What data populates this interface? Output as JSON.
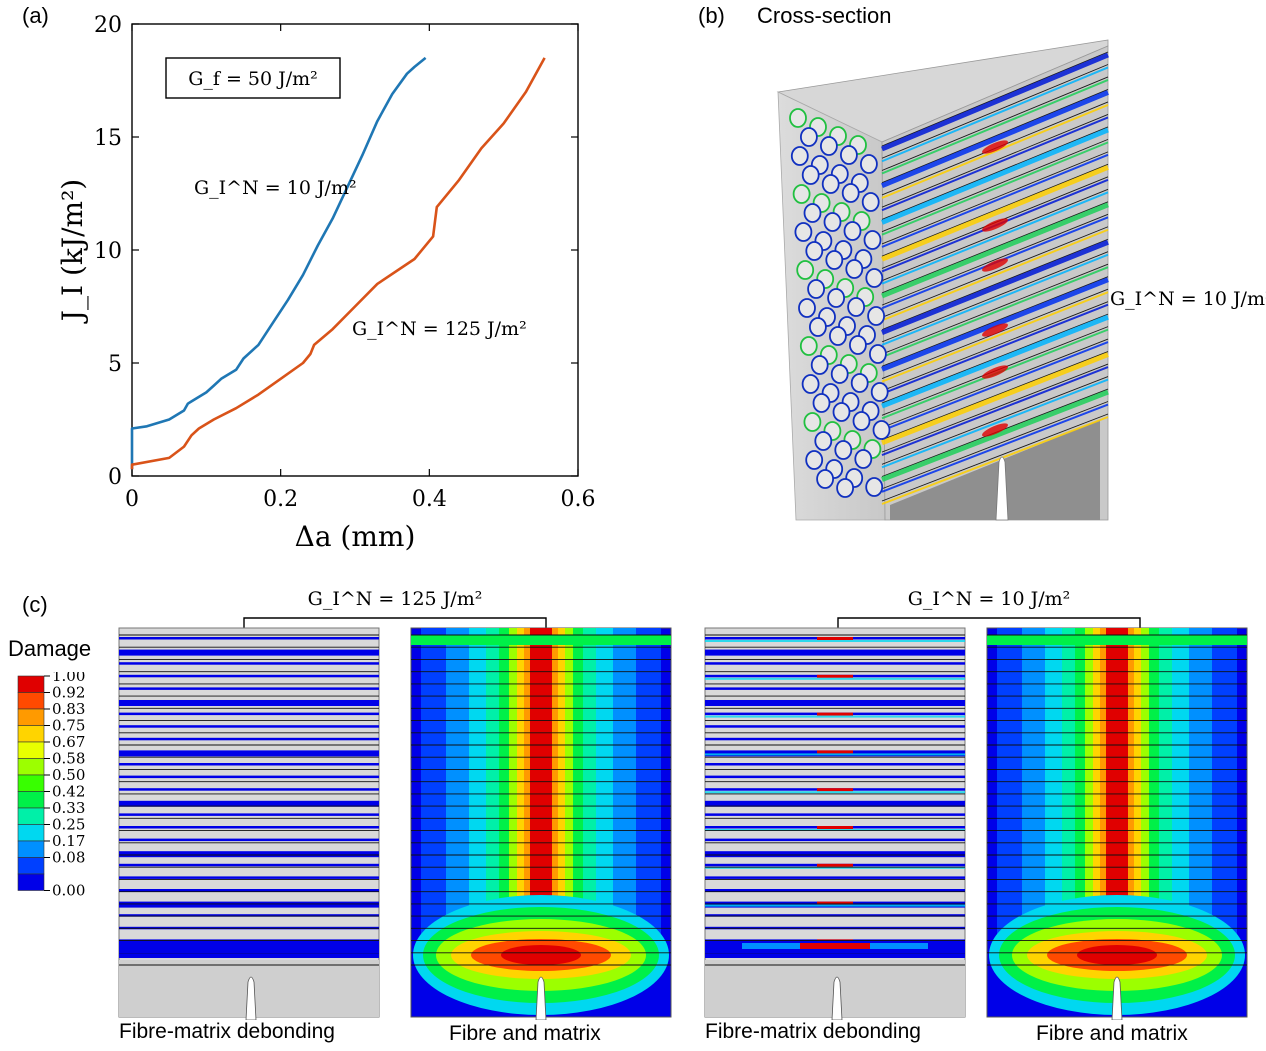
{
  "panel_labels": {
    "a": "(a)",
    "b": "(b)",
    "c": "(c)"
  },
  "chart_data": {
    "type": "line",
    "xlabel": "Δa (mm)",
    "ylabel": "J_I (kJ/m²)",
    "xlim": [
      0,
      0.6
    ],
    "ylim": [
      0,
      20
    ],
    "xticks": [
      "0",
      "0.2",
      "0.4",
      "0.6"
    ],
    "yticks": [
      "0",
      "5",
      "10",
      "15",
      "20"
    ],
    "grid": false,
    "legend_box": "G_f = 50 J/m²",
    "series": [
      {
        "name": "G_I^N = 10 J/m²",
        "color": "#1f77b4",
        "x": [
          0,
          0,
          0.02,
          0.05,
          0.07,
          0.075,
          0.08,
          0.1,
          0.11,
          0.12,
          0.14,
          0.15,
          0.17,
          0.19,
          0.21,
          0.23,
          0.25,
          0.27,
          0.29,
          0.31,
          0.33,
          0.35,
          0.37,
          0.38,
          0.395
        ],
        "y": [
          0.3,
          2.1,
          2.2,
          2.5,
          2.9,
          3.2,
          3.3,
          3.7,
          4.0,
          4.3,
          4.7,
          5.2,
          5.8,
          6.8,
          7.8,
          8.9,
          10.2,
          11.4,
          12.8,
          14.2,
          15.7,
          16.9,
          17.8,
          18.1,
          18.5
        ]
      },
      {
        "name": "G_I^N = 125 J/m²",
        "color": "#d95319",
        "x": [
          0,
          0,
          0.05,
          0.07,
          0.08,
          0.09,
          0.11,
          0.14,
          0.17,
          0.2,
          0.23,
          0.24,
          0.245,
          0.27,
          0.3,
          0.33,
          0.38,
          0.405,
          0.41,
          0.44,
          0.47,
          0.5,
          0.53,
          0.555
        ],
        "y": [
          0.3,
          0.5,
          0.8,
          1.3,
          1.8,
          2.1,
          2.5,
          3.0,
          3.6,
          4.3,
          5.0,
          5.4,
          5.8,
          6.5,
          7.5,
          8.5,
          9.6,
          10.6,
          11.9,
          13.1,
          14.5,
          15.6,
          17.0,
          18.5
        ]
      }
    ]
  },
  "panel_b": {
    "title": "Cross-section",
    "label": "G_I^N = 10 J/m²"
  },
  "panel_c": {
    "group_left": "G_I^N = 125 J/m²",
    "group_right": "G_I^N = 10 J/m²",
    "captions": [
      "Fibre-matrix debonding",
      "Fibre and matrix",
      "Fibre-matrix debonding",
      "Fibre and matrix"
    ],
    "legend": {
      "title": "Damage",
      "levels": [
        "1.00",
        "0.92",
        "0.83",
        "0.75",
        "0.67",
        "0.58",
        "0.50",
        "0.42",
        "0.33",
        "0.25",
        "0.17",
        "0.08",
        "0.00"
      ],
      "colors": [
        "#e00000",
        "#ff4a00",
        "#ff9a00",
        "#ffd400",
        "#e8ff00",
        "#9cff00",
        "#38ff00",
        "#00f048",
        "#00f0a8",
        "#00d8f0",
        "#0090ff",
        "#0040ff",
        "#0000e8"
      ]
    }
  }
}
